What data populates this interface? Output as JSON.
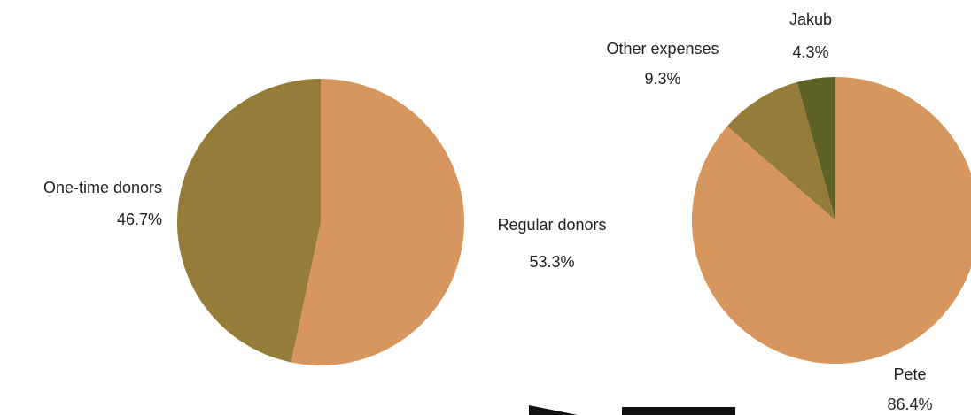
{
  "chart_data": [
    {
      "type": "pie",
      "title": "",
      "slices": [
        {
          "label": "Regular donors",
          "value": 53.3,
          "value_label": "53.3%",
          "color": "#d6965d"
        },
        {
          "label": "One-time donors",
          "value": 46.7,
          "value_label": "46.7%",
          "color": "#967c39"
        }
      ]
    },
    {
      "type": "pie",
      "title": "",
      "slices": [
        {
          "label": "Pete",
          "value": 86.4,
          "value_label": "86.4%",
          "color": "#d6965d"
        },
        {
          "label": "Other expenses",
          "value": 9.3,
          "value_label": "9.3%",
          "color": "#967c39"
        },
        {
          "label": "Jakub",
          "value": 4.3,
          "value_label": "4.3%",
          "color": "#5e6126"
        }
      ]
    }
  ],
  "decoration": {
    "partial_mark_color": "#111111"
  }
}
